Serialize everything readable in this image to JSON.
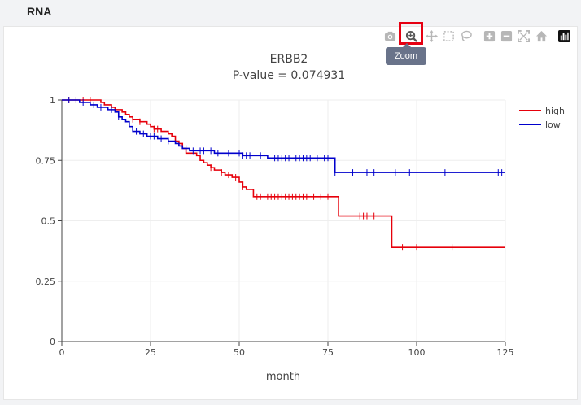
{
  "panel": {
    "title": "RNA"
  },
  "modebar": {
    "buttons": [
      {
        "icon": "camera-icon",
        "label": "Download plot as png"
      },
      {
        "icon": "zoom-icon",
        "label": "Zoom"
      },
      {
        "icon": "pan-icon",
        "label": "Pan"
      },
      {
        "icon": "box-select-icon",
        "label": "Box Select"
      },
      {
        "icon": "lasso-select-icon",
        "label": "Lasso Select"
      },
      {
        "icon": "zoom-in-icon",
        "label": "Zoom in"
      },
      {
        "icon": "zoom-out-icon",
        "label": "Zoom out"
      },
      {
        "icon": "autoscale-icon",
        "label": "Autoscale"
      },
      {
        "icon": "home-icon",
        "label": "Reset axes"
      },
      {
        "icon": "plotly-logo-icon",
        "label": "Produced with Plotly"
      }
    ],
    "tooltip": "Zoom",
    "highlight_color": "#e60012"
  },
  "chart_data": {
    "type": "line",
    "title": "ERBB2",
    "subtitle": "P-value = 0.074931",
    "xlabel": "month",
    "ylabel": "",
    "xlim": [
      0,
      125
    ],
    "ylim": [
      0,
      1
    ],
    "xticks": [
      0,
      25,
      50,
      75,
      100,
      125
    ],
    "yticks": [
      0,
      0.25,
      0.5,
      0.75,
      1
    ],
    "ytick_labels": [
      "0",
      "0.25",
      "0.5",
      "0.75",
      "1"
    ],
    "grid": true,
    "legend_position": "top-right",
    "series": [
      {
        "name": "high",
        "color": "#e6000b",
        "steps": [
          [
            0,
            1
          ],
          [
            11,
            0.99
          ],
          [
            12,
            0.98
          ],
          [
            14,
            0.97
          ],
          [
            15,
            0.96
          ],
          [
            17,
            0.95
          ],
          [
            18,
            0.94
          ],
          [
            19,
            0.93
          ],
          [
            20,
            0.92
          ],
          [
            22,
            0.91
          ],
          [
            24,
            0.9
          ],
          [
            25,
            0.89
          ],
          [
            26,
            0.88
          ],
          [
            28,
            0.87
          ],
          [
            30,
            0.86
          ],
          [
            31,
            0.85
          ],
          [
            32,
            0.83
          ],
          [
            33,
            0.82
          ],
          [
            34,
            0.8
          ],
          [
            35,
            0.78
          ],
          [
            38,
            0.77
          ],
          [
            39,
            0.75
          ],
          [
            40,
            0.74
          ],
          [
            41,
            0.73
          ],
          [
            42,
            0.72
          ],
          [
            43,
            0.71
          ],
          [
            45,
            0.7
          ],
          [
            46,
            0.69
          ],
          [
            48,
            0.68
          ],
          [
            50,
            0.66
          ],
          [
            51,
            0.64
          ],
          [
            52,
            0.63
          ],
          [
            54,
            0.6
          ],
          [
            78,
            0.52
          ],
          [
            93,
            0.39
          ],
          [
            125,
            0.39
          ]
        ],
        "censor": [
          2,
          4,
          6,
          8,
          20,
          22,
          26,
          27,
          42,
          45,
          47,
          49,
          51,
          55,
          56,
          57,
          58,
          59,
          60,
          61,
          62,
          63,
          64,
          65,
          66,
          67,
          68,
          69,
          71,
          73,
          75,
          84,
          85,
          86,
          88,
          96,
          100,
          110
        ]
      },
      {
        "name": "low",
        "color": "#0000cc",
        "steps": [
          [
            0,
            1
          ],
          [
            5,
            0.99
          ],
          [
            8,
            0.98
          ],
          [
            10,
            0.97
          ],
          [
            13,
            0.96
          ],
          [
            15,
            0.95
          ],
          [
            16,
            0.93
          ],
          [
            17,
            0.92
          ],
          [
            18,
            0.91
          ],
          [
            19,
            0.89
          ],
          [
            20,
            0.87
          ],
          [
            22,
            0.86
          ],
          [
            24,
            0.85
          ],
          [
            27,
            0.84
          ],
          [
            30,
            0.83
          ],
          [
            32,
            0.82
          ],
          [
            33,
            0.81
          ],
          [
            34,
            0.8
          ],
          [
            36,
            0.79
          ],
          [
            43,
            0.78
          ],
          [
            51,
            0.77
          ],
          [
            58,
            0.76
          ],
          [
            77,
            0.7
          ],
          [
            125,
            0.7
          ]
        ],
        "censor": [
          2,
          4,
          6,
          9,
          11,
          14,
          16,
          21,
          23,
          25,
          26,
          28,
          30,
          35,
          37,
          39,
          40,
          42,
          44,
          47,
          50,
          51,
          52,
          53,
          56,
          57,
          60,
          61,
          62,
          63,
          64,
          66,
          67,
          68,
          69,
          70,
          72,
          74,
          75,
          77,
          82,
          86,
          88,
          94,
          98,
          108,
          123,
          124
        ]
      }
    ]
  }
}
